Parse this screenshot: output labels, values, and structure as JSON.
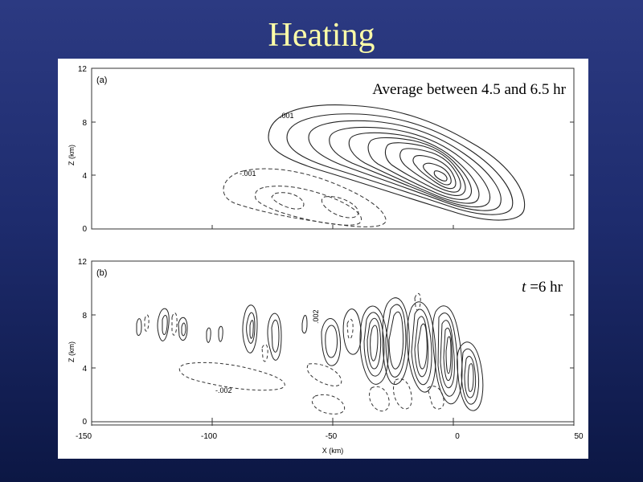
{
  "slide": {
    "title": "Heating"
  },
  "panel_a": {
    "tag": "(a)",
    "annotation": "Average between 4.5 and 6.5 hr",
    "contour_labels": [
      ".001",
      "-.001"
    ],
    "yaxis": {
      "label": "Z (km)",
      "ticks": [
        "0",
        "4",
        "8",
        "12"
      ]
    }
  },
  "panel_b": {
    "tag": "(b)",
    "annotation_var": "t",
    "annotation_rest": " =6 hr",
    "contour_labels": [
      ".002",
      "-.002"
    ],
    "yaxis": {
      "label": "Z (km)",
      "ticks": [
        "0",
        "4",
        "8",
        "12"
      ]
    },
    "xaxis": {
      "label": "X (km)",
      "ticks": [
        "-150",
        "-100",
        "-50",
        "0",
        "50"
      ]
    }
  },
  "colors": {
    "title": "#ffffa8",
    "background_top": "#2c3a82",
    "background_bottom": "#0c1744"
  }
}
